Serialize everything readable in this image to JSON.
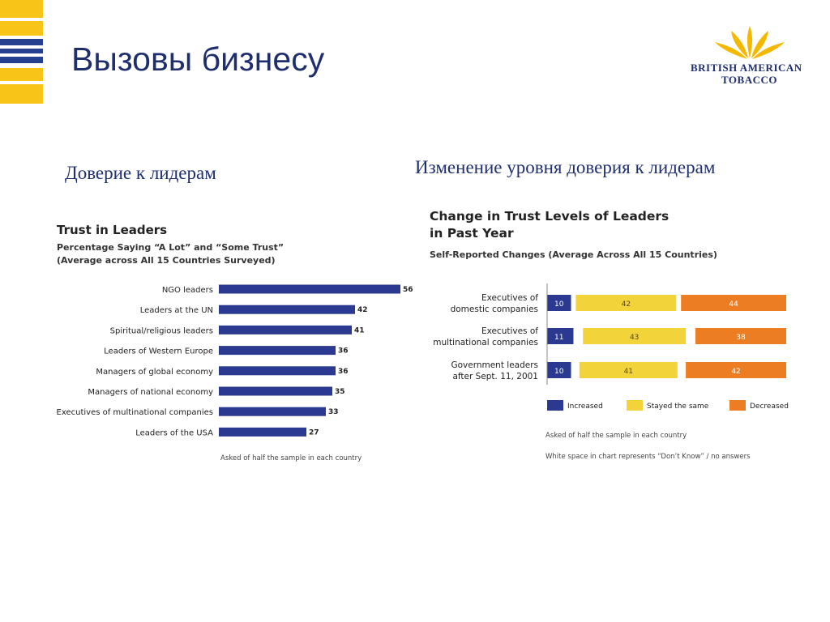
{
  "slide": {
    "title": "Вызовы бизнесу",
    "left_heading": "Доверие к лидерам",
    "right_heading": "Изменение уровня доверия к лидерам"
  },
  "logo": {
    "line1": "BRITISH AMERICAN",
    "line2": "TOBACCO",
    "color": "#f5b800"
  },
  "colors": {
    "navy": "#2b3990",
    "yellow": "#f3d33a",
    "orange": "#ec7d23",
    "stripe_yellow": "#f7c417",
    "stripe_blue": "#24408f"
  },
  "chart_data": [
    {
      "type": "bar",
      "orientation": "horizontal",
      "title": "Trust in Leaders",
      "subtitle_lines": [
        "Percentage Saying “A Lot” and “Some Trust”",
        "(Average across All 15 Countries Surveyed)"
      ],
      "categories": [
        "NGO leaders",
        "Leaders at the UN",
        "Spiritual/religious leaders",
        "Leaders of Western Europe",
        "Managers of global economy",
        "Managers of national economy",
        "Executives of multinational companies",
        "Leaders of the USA"
      ],
      "values": [
        56,
        42,
        41,
        36,
        36,
        35,
        33,
        27
      ],
      "note": "Asked of half the sample in each country"
    },
    {
      "type": "bar",
      "orientation": "horizontal",
      "stacked": true,
      "title_lines": [
        "Change in Trust Levels of Leaders",
        "in Past Year"
      ],
      "subtitle": "Self-Reported Changes (Average Across All 15 Countries)",
      "categories": [
        [
          "Executives of",
          "domestic companies"
        ],
        [
          "Executives of",
          "multinational companies"
        ],
        [
          "Government leaders",
          "after Sept. 11, 2001"
        ]
      ],
      "series": [
        {
          "name": "Increased",
          "values": [
            10,
            11,
            10
          ]
        },
        {
          "name": "Stayed the same",
          "values": [
            42,
            43,
            41
          ]
        },
        {
          "name": "Decreased",
          "values": [
            44,
            38,
            42
          ]
        }
      ],
      "notes": [
        "Asked of half the sample in each country",
        "White space in chart represents “Don’t Know” / no answers"
      ]
    }
  ]
}
